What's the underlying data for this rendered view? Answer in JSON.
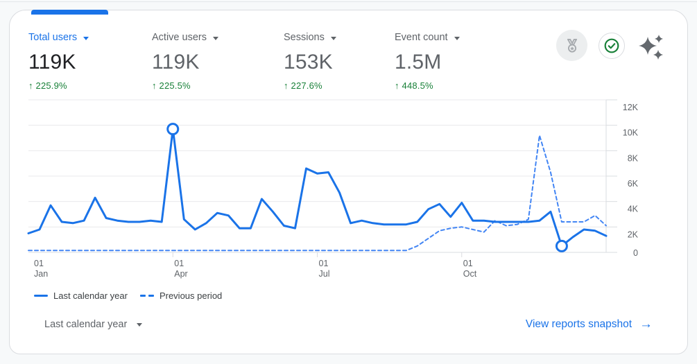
{
  "colors": {
    "accent_blue": "#1a73e8",
    "dashed_line_blue": "#4285f4",
    "delta_green": "#188038",
    "grid_line": "#e9eaec",
    "axis_line": "#dadce0",
    "axis_text": "#5f6368"
  },
  "metrics": [
    {
      "label": "Total users",
      "value": "119K",
      "delta": "↑ 225.9%",
      "selected": true
    },
    {
      "label": "Active users",
      "value": "119K",
      "delta": "↑ 225.5%",
      "selected": false
    },
    {
      "label": "Sessions",
      "value": "153K",
      "delta": "↑ 227.6%",
      "selected": false
    },
    {
      "label": "Event count",
      "value": "1.5M",
      "delta": "↑ 448.5%",
      "selected": false
    }
  ],
  "header_icons": [
    {
      "name": "medal-icon"
    },
    {
      "name": "check-circle-icon"
    },
    {
      "name": "sparkles-icon"
    }
  ],
  "chart_data": {
    "type": "line",
    "title": "",
    "metric_shown": "Total users",
    "x_unit": "week",
    "ylim": [
      0,
      12000
    ],
    "grid": "horizontal",
    "legend_position": "bottom-left",
    "y_ticks": [
      {
        "label": "12K",
        "value": 12000
      },
      {
        "label": "10K",
        "value": 10000
      },
      {
        "label": "8K",
        "value": 8000
      },
      {
        "label": "6K",
        "value": 6000
      },
      {
        "label": "4K",
        "value": 4000
      },
      {
        "label": "2K",
        "value": 2000
      },
      {
        "label": "0",
        "value": 0
      }
    ],
    "x_ticks": [
      {
        "label_top": "01",
        "label_bottom": "Jan",
        "week": 0
      },
      {
        "label_top": "01",
        "label_bottom": "Apr",
        "week": 13
      },
      {
        "label_top": "01",
        "label_bottom": "Jul",
        "week": 26
      },
      {
        "label_top": "01",
        "label_bottom": "Oct",
        "week": 39
      }
    ],
    "series": [
      {
        "name": "Last calendar year",
        "style": "solid",
        "color": "#1a73e8",
        "stroke_width": 3,
        "values": [
          1500,
          1800,
          3700,
          2400,
          2300,
          2500,
          4300,
          2700,
          2500,
          2400,
          2400,
          2500,
          2400,
          9700,
          2600,
          1800,
          2300,
          3100,
          2900,
          1900,
          1900,
          4200,
          3200,
          2100,
          1900,
          6600,
          6200,
          6300,
          4700,
          2300,
          2500,
          2300,
          2200,
          2200,
          2200,
          2400,
          3400,
          3800,
          2800,
          3900,
          2500,
          2500,
          2400,
          2400,
          2400,
          2400,
          2500,
          3200,
          500,
          1200,
          1800,
          1700,
          1300
        ]
      },
      {
        "name": "Previous period",
        "style": "dashed",
        "color": "#4285f4",
        "stroke_width": 2,
        "values": [
          150,
          150,
          150,
          150,
          150,
          150,
          150,
          150,
          150,
          150,
          150,
          150,
          150,
          150,
          150,
          150,
          150,
          150,
          150,
          150,
          150,
          150,
          150,
          150,
          150,
          150,
          150,
          150,
          150,
          150,
          150,
          150,
          150,
          150,
          150,
          500,
          1100,
          1700,
          1900,
          2000,
          1800,
          1600,
          2500,
          2100,
          2200,
          2600,
          9200,
          6300,
          2400,
          2400,
          2400,
          2900,
          2100
        ]
      }
    ],
    "markers": [
      {
        "series": 0,
        "index": 13
      },
      {
        "series": 0,
        "index": 48
      }
    ]
  },
  "legend": {
    "items": [
      {
        "label": "Last calendar year",
        "style": "solid"
      },
      {
        "label": "Previous period",
        "style": "dashed"
      }
    ]
  },
  "footer": {
    "range_label": "Last calendar year",
    "link_label": "View reports snapshot",
    "link_arrow": "→"
  }
}
